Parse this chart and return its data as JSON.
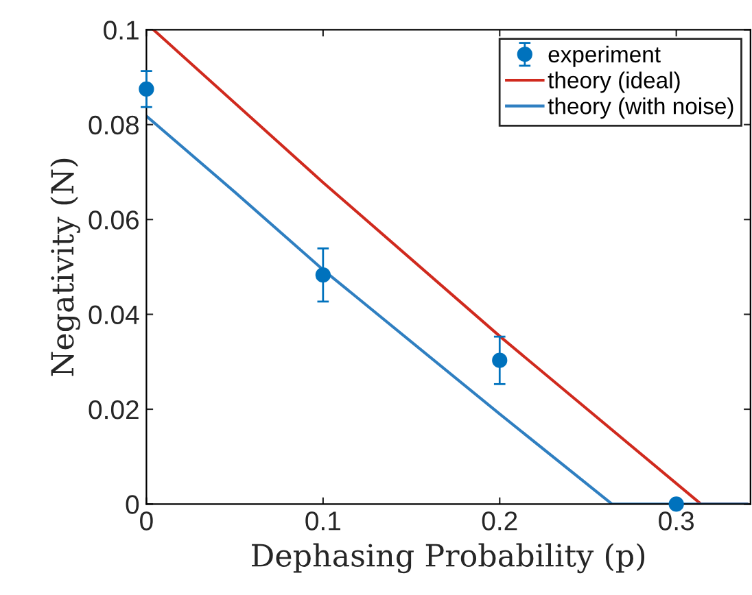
{
  "chart_data": {
    "type": "line",
    "xlabel": "Dephasing Probability (p)",
    "ylabel": "Negativity (N)",
    "xlim": [
      0,
      0.342
    ],
    "ylim": [
      0,
      0.1
    ],
    "xticks": [
      0,
      0.1,
      0.2,
      0.3
    ],
    "yticks": [
      0,
      0.02,
      0.04,
      0.06,
      0.08,
      0.1
    ],
    "grid": false,
    "legend": "top right",
    "series": [
      {
        "name": "experiment",
        "type": "scatter",
        "color": "#0072bd",
        "marker": "circle",
        "x": [
          0,
          0.1,
          0.2,
          0.3
        ],
        "values": [
          0.0875,
          0.0483,
          0.0303,
          0
        ],
        "errors": [
          0.0038,
          0.0056,
          0.005,
          null
        ]
      },
      {
        "name": "theory (ideal)",
        "type": "line",
        "color": "#d02a1e",
        "marker": "none",
        "x": [
          0.004,
          0.1,
          0.2,
          0.314,
          0.34
        ],
        "values": [
          0.1,
          0.0678,
          0.0354,
          0,
          0
        ]
      },
      {
        "name": "theory (with noise)",
        "type": "line",
        "color": "#2f7fc1",
        "marker": "none",
        "x": [
          0,
          0.05,
          0.1,
          0.2,
          0.2636,
          0.34
        ],
        "values": [
          0.0818,
          0.0658,
          0.0494,
          0.019,
          0,
          0
        ]
      }
    ]
  }
}
